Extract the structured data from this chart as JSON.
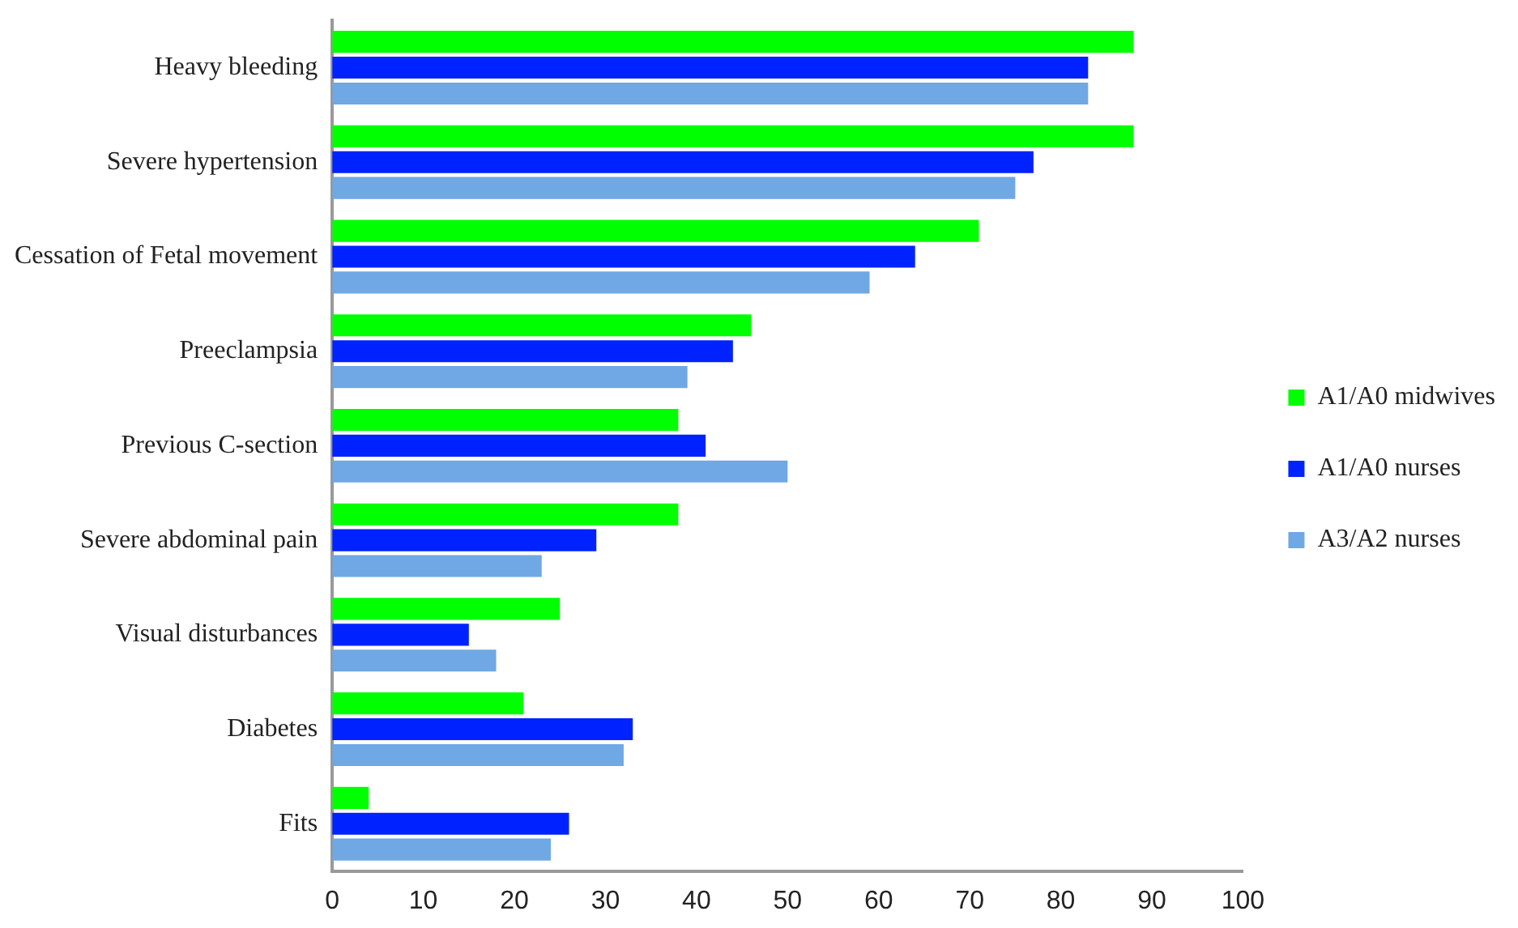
{
  "chart_data": {
    "type": "bar",
    "orientation": "horizontal",
    "categories": [
      "Heavy bleeding",
      "Severe hypertension",
      "Cessation of Fetal movement",
      "Preeclampsia",
      "Previous C-section",
      "Severe abdominal pain",
      "Visual disturbances",
      "Diabetes",
      "Fits"
    ],
    "series": [
      {
        "name": "A1/A0 midwives",
        "color": "#00ff00",
        "values": [
          88,
          88,
          71,
          46,
          38,
          38,
          25,
          21,
          4
        ]
      },
      {
        "name": "A1/A0 nurses",
        "color": "#0022ff",
        "values": [
          83,
          77,
          64,
          44,
          41,
          29,
          15,
          33,
          26
        ]
      },
      {
        "name": "A3/A2 nurses",
        "color": "#6fa8e4",
        "values": [
          83,
          75,
          59,
          39,
          50,
          23,
          18,
          32,
          24
        ]
      }
    ],
    "xlim": [
      0,
      100
    ],
    "xticks": [
      0,
      10,
      20,
      30,
      40,
      50,
      60,
      70,
      80,
      90,
      100
    ],
    "grid": false,
    "legend": "right"
  }
}
